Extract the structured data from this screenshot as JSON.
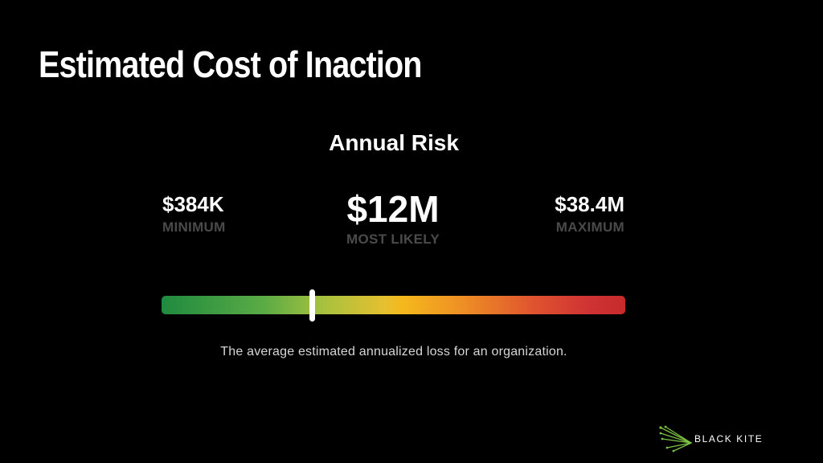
{
  "page": {
    "title": "Estimated Cost of Inaction"
  },
  "risk": {
    "heading": "Annual Risk",
    "minimum": {
      "value": "$384K",
      "label": "MINIMUM"
    },
    "most_likely": {
      "value": "$12M",
      "label": "MOST LIKELY"
    },
    "maximum": {
      "value": "$38.4M",
      "label": "MAXIMUM"
    },
    "scale": {
      "marker_fraction": 0.325,
      "gradient_colors": [
        "#1f8a3f",
        "#5aab45",
        "#f5b81c",
        "#e0542f",
        "#c72a2a"
      ],
      "marker_color": "#ffffff"
    },
    "caption": "The average estimated annualized loss for an organization."
  },
  "brand": {
    "name": "BLACK KITE",
    "icon": "kite-logo-icon",
    "accent_color": "#7cc242"
  }
}
